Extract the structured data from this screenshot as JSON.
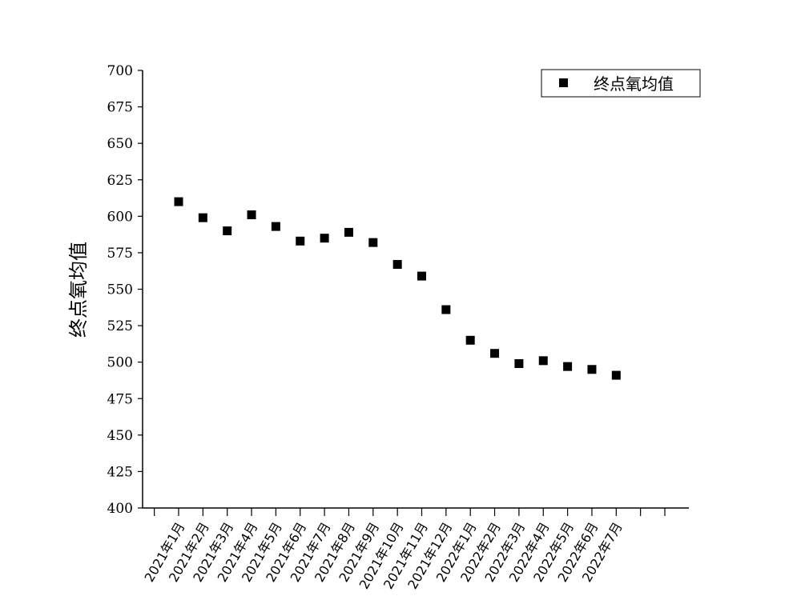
{
  "chart_data": {
    "type": "scatter",
    "title": "",
    "xlabel": "",
    "ylabel": "终点氧均值",
    "ylim": [
      400,
      700
    ],
    "yticks": [
      400,
      425,
      450,
      475,
      500,
      525,
      550,
      575,
      600,
      625,
      650,
      675,
      700
    ],
    "grid": false,
    "legend_position": "top-right",
    "marker_color": "#000000",
    "categories": [
      "2021年1月",
      "2021年2月",
      "2021年3月",
      "2021年4月",
      "2021年5月",
      "2021年6月",
      "2021年7月",
      "2021年8月",
      "2021年9月",
      "2021年10月",
      "2021年11月",
      "2021年12月",
      "2022年1月",
      "2022年2月",
      "2022年3月",
      "2022年4月",
      "2022年5月",
      "2022年6月",
      "2022年7月"
    ],
    "series": [
      {
        "name": "终点氧均值",
        "values": [
          610,
          599,
          590,
          601,
          593,
          583,
          585,
          589,
          582,
          567,
          559,
          536,
          515,
          506,
          499,
          501,
          497,
          495,
          491
        ]
      }
    ]
  }
}
